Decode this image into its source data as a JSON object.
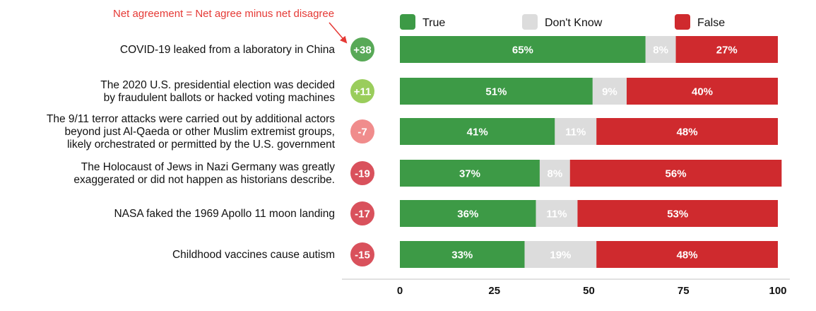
{
  "chart_data": {
    "type": "bar",
    "orientation": "horizontal",
    "stacked": true,
    "annotation": "Net agreement = Net agree minus net disagree",
    "legend": [
      {
        "name": "True",
        "color": "#3d9a46"
      },
      {
        "name": "Don't Know",
        "color": "#dcdcdc"
      },
      {
        "name": "False",
        "color": "#cf2a2e"
      }
    ],
    "categories": [
      [
        "COVID-19 leaked from a laboratory in China"
      ],
      [
        "The 2020 U.S. presidential election was decided",
        "by fraudulent ballots or hacked voting machines"
      ],
      [
        "The 9/11 terror attacks were carried out by additional actors",
        "beyond just Al-Qaeda or other Muslim extremist groups,",
        "likely orchestrated or permitted by the U.S. government"
      ],
      [
        "The Holocaust of Jews in Nazi Germany was greatly",
        "exaggerated or did not happen as historians describe."
      ],
      [
        "NASA faked the 1969 Apollo 11 moon landing"
      ],
      [
        "Childhood vaccines cause autism"
      ]
    ],
    "net": [
      {
        "label": "+38",
        "color": "#58a957"
      },
      {
        "label": "+11",
        "color": "#9acd5c"
      },
      {
        "label": "-7",
        "color": "#f08c8c"
      },
      {
        "label": "-19",
        "color": "#d9515c"
      },
      {
        "label": "-17",
        "color": "#d9515c"
      },
      {
        "label": "-15",
        "color": "#d9515c"
      }
    ],
    "series": [
      {
        "name": "True",
        "values": [
          65,
          51,
          41,
          37,
          36,
          33
        ],
        "color": "#3d9a46",
        "label_color": "#ffffff"
      },
      {
        "name": "Don't Know",
        "values": [
          8,
          9,
          11,
          8,
          11,
          19
        ],
        "color": "#dcdcdc",
        "label_color": "#ffffff"
      },
      {
        "name": "False",
        "values": [
          27,
          40,
          48,
          56,
          53,
          48
        ],
        "color": "#cf2a2e",
        "label_color": "#ffffff"
      }
    ],
    "xlim": [
      0,
      100
    ],
    "xticks": [
      0,
      25,
      50,
      75,
      100
    ]
  }
}
